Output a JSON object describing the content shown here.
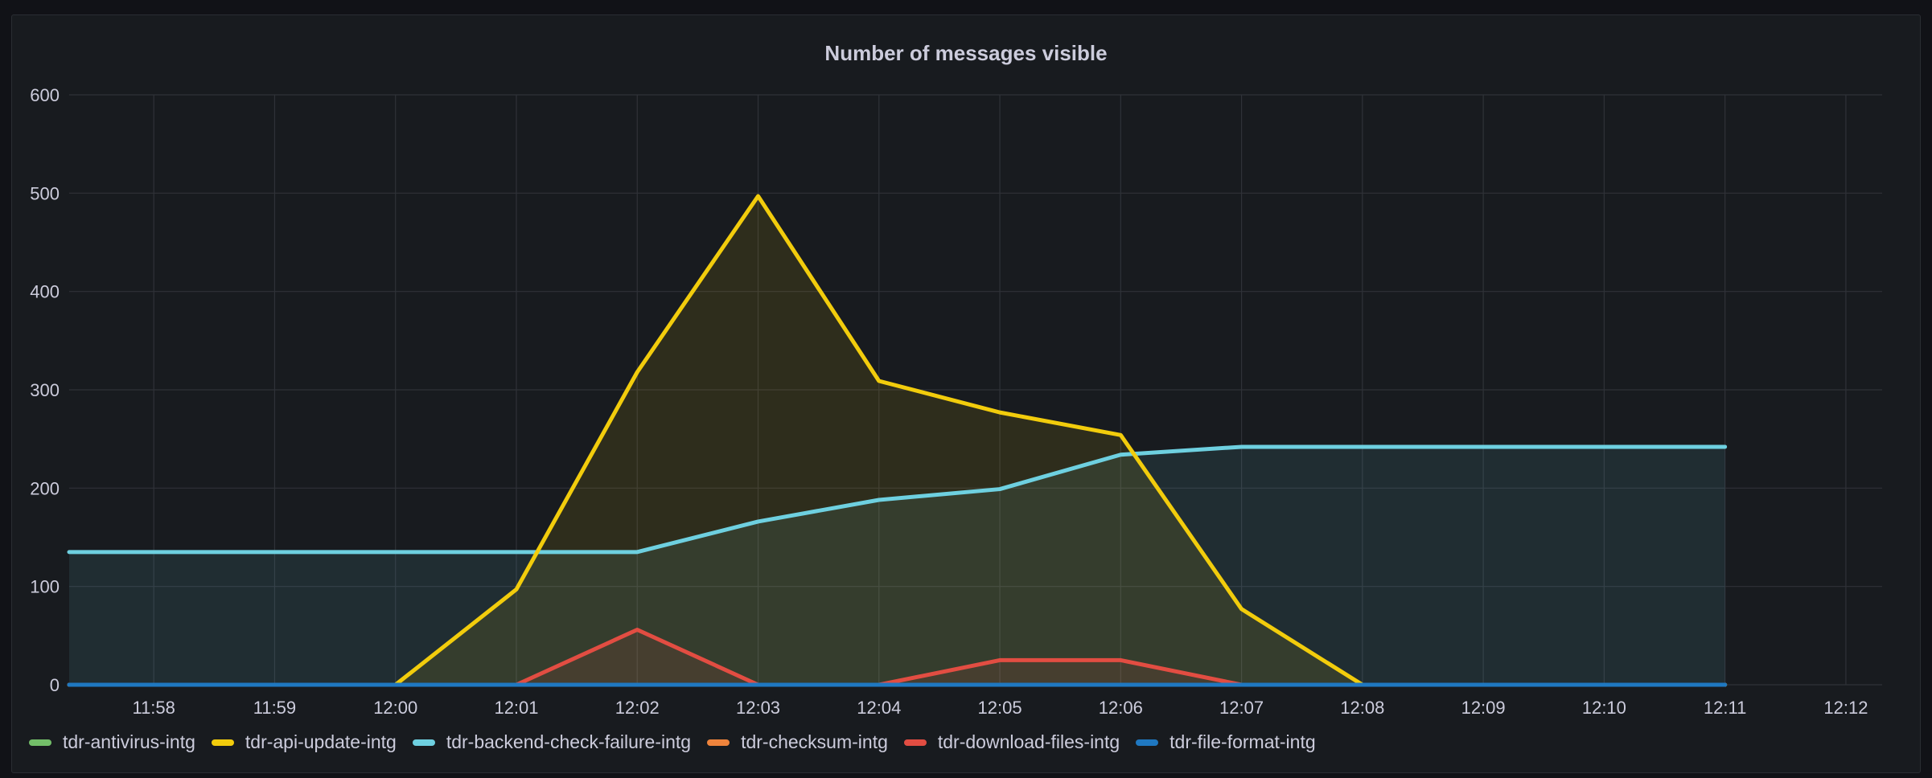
{
  "panel": {
    "title": "Number of messages visible"
  },
  "chart_data": {
    "type": "area",
    "title": "Number of messages visible",
    "xlabel": "",
    "ylabel": "",
    "ylim": [
      0,
      600
    ],
    "yticks": [
      0,
      100,
      200,
      300,
      400,
      500,
      600
    ],
    "xlim": [
      "11:57:18",
      "12:12:18"
    ],
    "xticks": [
      "11:58",
      "11:59",
      "12:00",
      "12:01",
      "12:02",
      "12:03",
      "12:04",
      "12:05",
      "12:06",
      "12:07",
      "12:08",
      "12:09",
      "12:10",
      "12:11",
      "12:12"
    ],
    "x": [
      "11:57:18",
      "11:58",
      "11:59",
      "12:00",
      "12:01",
      "12:02",
      "12:03",
      "12:04",
      "12:05",
      "12:06",
      "12:07",
      "12:08",
      "12:09",
      "12:10",
      "12:11"
    ],
    "grid": true,
    "legend_position": "bottom",
    "series": [
      {
        "name": "tdr-antivirus-intg",
        "color": "#73bf69",
        "values": [
          0,
          0,
          0,
          0,
          0,
          0,
          0,
          0,
          0,
          0,
          0,
          0,
          0,
          0,
          0
        ]
      },
      {
        "name": "tdr-api-update-intg",
        "color": "#f2cc0c",
        "values": [
          null,
          null,
          null,
          0,
          97,
          318,
          497,
          309,
          277,
          254,
          77,
          0,
          0,
          0,
          0
        ]
      },
      {
        "name": "tdr-backend-check-failure-intg",
        "color": "#6ed0e0",
        "values": [
          135,
          135,
          135,
          135,
          135,
          135,
          166,
          188,
          199,
          234,
          242,
          242,
          242,
          242,
          242
        ]
      },
      {
        "name": "tdr-checksum-intg",
        "color": "#ef843c",
        "values": [
          0,
          0,
          0,
          0,
          0,
          0,
          0,
          0,
          0,
          0,
          0,
          0,
          0,
          0,
          0
        ]
      },
      {
        "name": "tdr-download-files-intg",
        "color": "#e24d42",
        "values": [
          0,
          0,
          0,
          0,
          0,
          56,
          0,
          0,
          25,
          25,
          0,
          0,
          0,
          0,
          0
        ]
      },
      {
        "name": "tdr-file-format-intg",
        "color": "#1f78c1",
        "values": [
          0,
          0,
          0,
          0,
          0,
          0,
          0,
          0,
          0,
          0,
          0,
          0,
          0,
          0,
          0
        ]
      }
    ]
  }
}
